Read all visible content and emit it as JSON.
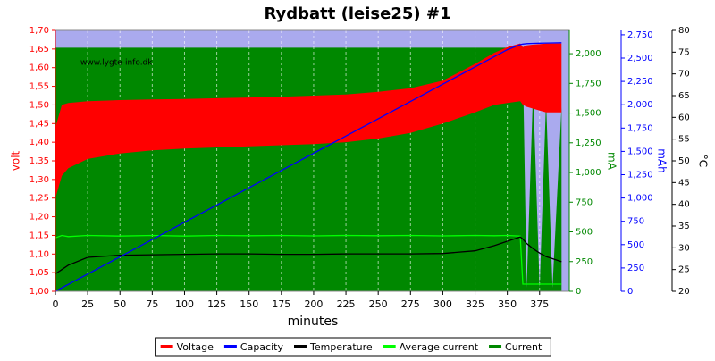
{
  "chart_data": {
    "type": "multi-axis-line",
    "title": "Rydbatt (leise25) #1",
    "annotation": "www.lygte-info.dk",
    "xlabel": "minutes",
    "ylabel": "volt",
    "y2label": "mA",
    "y3label": "mAh",
    "y4label": "°C",
    "xlim": [
      0,
      398
    ],
    "xticks": [
      0,
      25,
      50,
      75,
      100,
      125,
      150,
      175,
      200,
      225,
      250,
      275,
      300,
      325,
      350,
      375
    ],
    "ylim": [
      1.0,
      1.7
    ],
    "yticks": [
      {
        "value": 1.0,
        "label": "1,00"
      },
      {
        "value": 1.05,
        "label": "1,05"
      },
      {
        "value": 1.1,
        "label": "1,10"
      },
      {
        "value": 1.15,
        "label": "1,15"
      },
      {
        "value": 1.2,
        "label": "1,20"
      },
      {
        "value": 1.25,
        "label": "1,25"
      },
      {
        "value": 1.3,
        "label": "1,30"
      },
      {
        "value": 1.35,
        "label": "1,35"
      },
      {
        "value": 1.4,
        "label": "1,40"
      },
      {
        "value": 1.45,
        "label": "1,45"
      },
      {
        "value": 1.5,
        "label": "1,50"
      },
      {
        "value": 1.55,
        "label": "1,55"
      },
      {
        "value": 1.6,
        "label": "1,60"
      },
      {
        "value": 1.65,
        "label": "1,65"
      },
      {
        "value": 1.7,
        "label": "1,70"
      }
    ],
    "y2lim": [
      0,
      2196
    ],
    "y2ticks": [
      0,
      250,
      500,
      750,
      {
        "value": 1000,
        "label": "1,000"
      },
      {
        "value": 1250,
        "label": "1,250"
      },
      {
        "value": 1500,
        "label": "1,500"
      },
      {
        "value": 1750,
        "label": "1,750"
      },
      {
        "value": 2000,
        "label": "2,000"
      }
    ],
    "y3lim": [
      0,
      2797
    ],
    "y3ticks": [
      0,
      250,
      500,
      750,
      {
        "value": 1000,
        "label": "1,000"
      },
      {
        "value": 1250,
        "label": "1,250"
      },
      {
        "value": 1500,
        "label": "1,500"
      },
      {
        "value": 1750,
        "label": "1,750"
      },
      {
        "value": 2000,
        "label": "2,000"
      },
      {
        "value": 2250,
        "label": "2,250"
      },
      {
        "value": 2500,
        "label": "2,500"
      },
      {
        "value": 2750,
        "label": "2,750"
      }
    ],
    "y4lim": [
      20,
      80
    ],
    "y4ticks": [
      20,
      25,
      30,
      35,
      40,
      45,
      50,
      55,
      60,
      65,
      70,
      75,
      80
    ],
    "grid": true,
    "background": "#aaaaee",
    "x": [
      0,
      5,
      10,
      25,
      50,
      75,
      100,
      125,
      150,
      175,
      200,
      225,
      250,
      275,
      300,
      325,
      340,
      350,
      360,
      362,
      365,
      370,
      375,
      380,
      385,
      392
    ],
    "series": [
      {
        "name": "Voltage",
        "color": "#ff0000",
        "axis": "y",
        "high": [
          1.44,
          1.5,
          1.505,
          1.51,
          1.513,
          1.515,
          1.516,
          1.518,
          1.52,
          1.522,
          1.525,
          1.528,
          1.535,
          1.545,
          1.565,
          1.61,
          1.64,
          1.655,
          1.665,
          1.655,
          1.66,
          1.662,
          1.663,
          1.665,
          1.665,
          1.665
        ],
        "low": [
          1.25,
          1.31,
          1.33,
          1.355,
          1.37,
          1.378,
          1.383,
          1.386,
          1.389,
          1.392,
          1.395,
          1.4,
          1.41,
          1.425,
          1.45,
          1.48,
          1.5,
          1.505,
          1.51,
          1.5,
          1.495,
          1.49,
          1.485,
          1.48,
          1.48,
          1.48
        ]
      },
      {
        "name": "Capacity",
        "color": "#0000ff",
        "axis": "y3",
        "values": [
          0,
          37,
          74,
          185,
          370,
          555,
          740,
          925,
          1110,
          1295,
          1480,
          1665,
          1850,
          2035,
          2220,
          2405,
          2516,
          2590,
          2645,
          2650,
          2655,
          2658,
          2660,
          2662,
          2663,
          2665
        ]
      },
      {
        "name": "Temperature",
        "color": "#000000",
        "axis": "y4",
        "values": [
          24,
          25,
          26,
          27.8,
          28.3,
          28.4,
          28.5,
          28.6,
          28.6,
          28.5,
          28.5,
          28.6,
          28.6,
          28.6,
          28.7,
          29.3,
          30.5,
          31.5,
          32.5,
          32,
          31,
          29.8,
          28.8,
          28,
          27.5,
          26.8
        ]
      },
      {
        "name": "Average current",
        "color": "#00ff00",
        "axis": "y2",
        "values": [
          450,
          470,
          460,
          470,
          465,
          470,
          465,
          470,
          468,
          470,
          466,
          470,
          468,
          470,
          466,
          470,
          468,
          470,
          465,
          60,
          60,
          60,
          60,
          60,
          60,
          60
        ]
      },
      {
        "name": "Current",
        "color": "#008800",
        "axis": "y2",
        "values": [
          2050,
          2050,
          2050,
          2050,
          2050,
          2050,
          2050,
          2050,
          2050,
          2050,
          2050,
          2050,
          2050,
          2050,
          2050,
          2050,
          2050,
          2050,
          2050,
          1950,
          30,
          1700,
          30,
          1600,
          30,
          1550
        ]
      }
    ]
  }
}
